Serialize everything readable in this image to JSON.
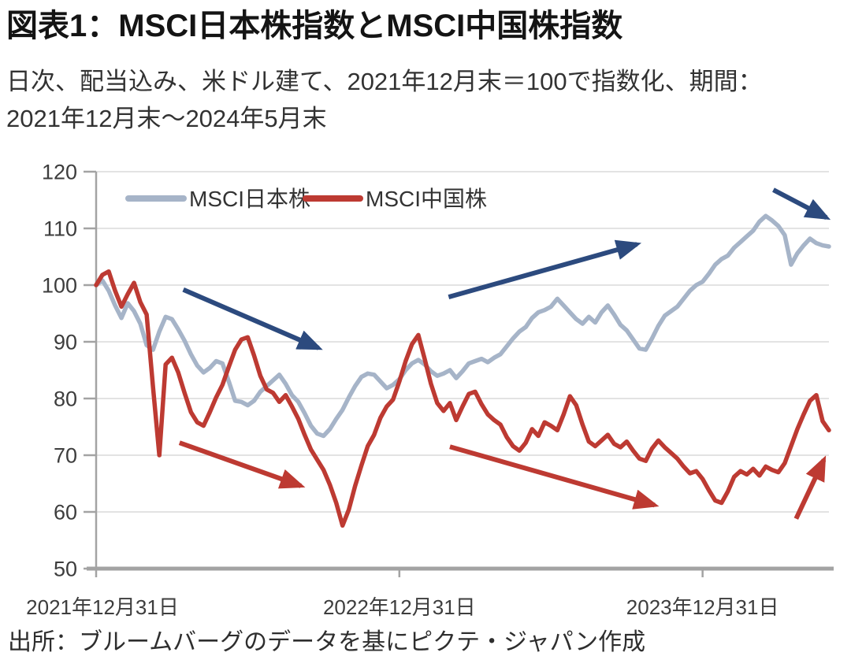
{
  "header": {
    "title": "図表1：MSCI日本株指数とMSCI中国株指数",
    "subtitle": "日次、配当込み、米ドル建て、2021年12月末＝100で指数化、期間：2021年12月末～2024年5月末"
  },
  "footer": {
    "source": "出所：ブルームバーグのデータを基にピクテ・ジャパン作成"
  },
  "colors": {
    "grid": "#e3e3e3",
    "axis": "#a3a3a3",
    "tick_text": "#3d3d3d",
    "legend_text": "#333333"
  },
  "chart_data": {
    "type": "line",
    "title": "図表1：MSCI日本株指数とMSCI中国株指数",
    "xlabel": "",
    "ylabel": "",
    "x_unit": "months since 2021-12-31",
    "x_range": [
      0,
      29
    ],
    "ylim": [
      50,
      120
    ],
    "y_ticks": [
      50,
      60,
      70,
      80,
      90,
      100,
      110,
      120
    ],
    "x_ticks": [
      {
        "pos": 0,
        "label": "2021年12月31日"
      },
      {
        "pos": 12,
        "label": "2022年12月31日"
      },
      {
        "pos": 24,
        "label": "2023年12月31日"
      }
    ],
    "grid": "horizontal",
    "legend_position": "top-inside",
    "series": [
      {
        "name": "MSCI日本株",
        "color": "#a6b4c8",
        "values": [
          100,
          100.8,
          99.0,
          96.4,
          94.2,
          96.8,
          95.4,
          93.2,
          89.4,
          88.6,
          91.8,
          94.4,
          94.0,
          92.2,
          90.2,
          87.8,
          85.8,
          84.6,
          85.4,
          86.6,
          86.2,
          83.0,
          79.6,
          79.4,
          78.8,
          79.6,
          81.2,
          82.2,
          83.2,
          84.2,
          82.6,
          80.6,
          79.4,
          77.4,
          75.2,
          73.8,
          73.4,
          74.6,
          76.4,
          78.0,
          80.2,
          82.2,
          83.8,
          84.4,
          84.2,
          83.0,
          81.8,
          82.4,
          83.4,
          85.0,
          86.2,
          86.8,
          86.0,
          84.8,
          84.0,
          84.4,
          85.0,
          83.6,
          84.8,
          86.2,
          86.6,
          87.0,
          86.4,
          87.2,
          87.8,
          89.2,
          90.6,
          91.8,
          92.6,
          94.2,
          95.2,
          95.6,
          96.2,
          97.6,
          96.4,
          95.2,
          94.0,
          93.2,
          94.4,
          93.4,
          95.2,
          96.4,
          94.8,
          93.0,
          92.0,
          90.4,
          88.8,
          88.6,
          90.6,
          92.8,
          94.6,
          95.4,
          96.2,
          97.6,
          99.0,
          100.0,
          100.6,
          102.0,
          103.6,
          104.6,
          105.2,
          106.6,
          107.6,
          108.6,
          109.6,
          111.2,
          112.2,
          111.4,
          110.4,
          108.8,
          103.6,
          105.6,
          107.0,
          108.2,
          107.4,
          107.0,
          106.8
        ]
      },
      {
        "name": "MSCI中国株",
        "color": "#bd3a32",
        "values": [
          100,
          101.8,
          102.4,
          99.0,
          96.2,
          98.4,
          100.4,
          97.0,
          94.8,
          82.0,
          70.0,
          86.0,
          87.2,
          84.6,
          81.0,
          77.6,
          75.8,
          75.2,
          77.6,
          80.2,
          82.4,
          85.6,
          88.6,
          90.4,
          90.8,
          87.6,
          84.0,
          81.6,
          81.0,
          79.4,
          80.6,
          78.6,
          76.4,
          73.6,
          71.0,
          69.2,
          67.4,
          64.8,
          61.6,
          57.6,
          60.4,
          64.6,
          68.2,
          71.6,
          73.6,
          76.6,
          78.6,
          79.8,
          83.0,
          86.6,
          89.6,
          91.2,
          87.0,
          82.6,
          79.2,
          77.8,
          79.2,
          76.2,
          78.6,
          80.8,
          81.2,
          79.0,
          77.2,
          76.2,
          75.4,
          73.2,
          71.6,
          70.8,
          72.2,
          74.6,
          73.4,
          75.8,
          75.2,
          74.4,
          77.2,
          80.4,
          78.8,
          75.4,
          72.4,
          71.6,
          72.6,
          73.6,
          72.0,
          71.4,
          72.4,
          70.8,
          69.4,
          69.0,
          71.2,
          72.6,
          71.4,
          70.4,
          69.4,
          68.0,
          66.8,
          67.2,
          65.8,
          63.8,
          62.0,
          61.6,
          63.6,
          66.2,
          67.2,
          66.6,
          67.6,
          66.4,
          68.0,
          67.4,
          67.0,
          68.6,
          71.6,
          74.6,
          77.2,
          79.6,
          80.6,
          76.0,
          74.4
        ]
      }
    ],
    "annotations": {
      "arrows": [
        {
          "color": "#2c4a7e",
          "from": [
            3.45,
            99.2
          ],
          "to": [
            8.8,
            88.9
          ]
        },
        {
          "color": "#2c4a7e",
          "from": [
            13.95,
            97.9
          ],
          "to": [
            21.4,
            107.2
          ]
        },
        {
          "color": "#2c4a7e",
          "from": [
            26.8,
            116.8
          ],
          "to": [
            28.9,
            111.9
          ]
        },
        {
          "color": "#bd3a32",
          "from": [
            3.3,
            72.2
          ],
          "to": [
            8.1,
            64.6
          ]
        },
        {
          "color": "#bd3a32",
          "from": [
            14.0,
            71.5
          ],
          "to": [
            22.1,
            61.2
          ]
        },
        {
          "color": "#bd3a32",
          "from": [
            27.7,
            58.8
          ],
          "to": [
            28.8,
            69.2
          ]
        }
      ]
    }
  }
}
